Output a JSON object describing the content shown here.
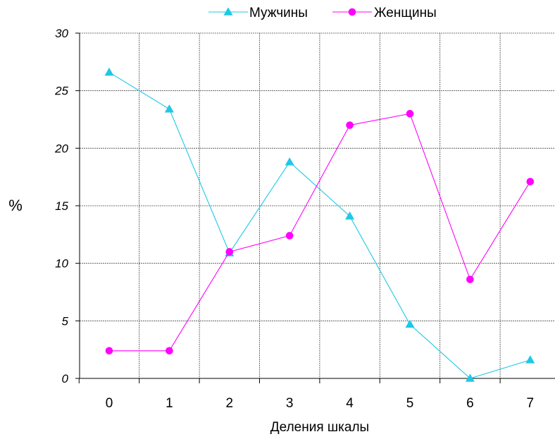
{
  "chart_data": {
    "type": "line",
    "title": "",
    "xlabel": "Деления шкалы",
    "ylabel": "%",
    "x": [
      0,
      1,
      2,
      3,
      4,
      5,
      6,
      7
    ],
    "x_tick_labels": [
      "0",
      "1",
      "2",
      "3",
      "4",
      "5",
      "6",
      "7"
    ],
    "y_tick_labels": [
      "0",
      "5",
      "10",
      "15",
      "20",
      "25",
      "30"
    ],
    "ylim": [
      0,
      30
    ],
    "grid": true,
    "legend_position": "top",
    "series": [
      {
        "name": "Мужчины",
        "marker": "triangle",
        "color": "#1ec8e6",
        "values": [
          26.6,
          23.4,
          10.9,
          18.8,
          14.1,
          4.7,
          0.0,
          1.6
        ]
      },
      {
        "name": "Женщины",
        "marker": "circle",
        "color": "#ff00ff",
        "values": [
          2.4,
          2.4,
          11.0,
          12.4,
          22.0,
          23.0,
          8.6,
          17.1
        ]
      }
    ]
  }
}
